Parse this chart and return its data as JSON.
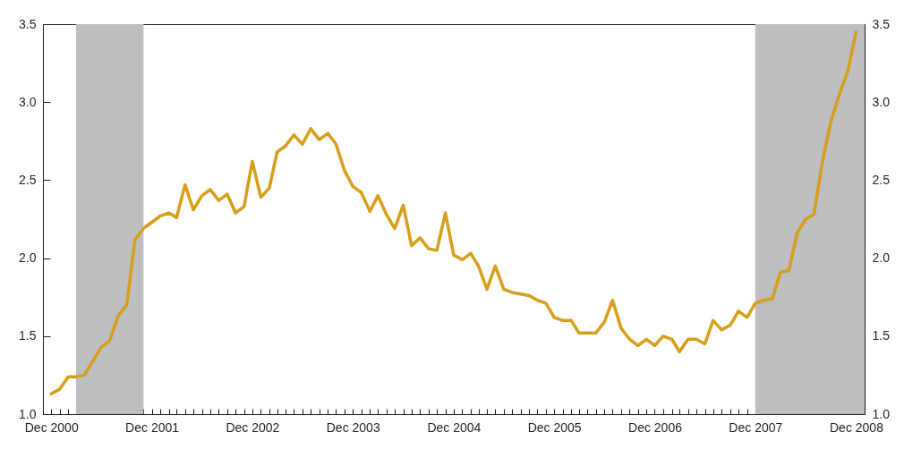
{
  "chart_data": {
    "type": "line",
    "x": [
      "2000-12",
      "2001-01",
      "2001-02",
      "2001-03",
      "2001-04",
      "2001-05",
      "2001-06",
      "2001-07",
      "2001-08",
      "2001-09",
      "2001-10",
      "2001-11",
      "2001-12",
      "2002-01",
      "2002-02",
      "2002-03",
      "2002-04",
      "2002-05",
      "2002-06",
      "2002-07",
      "2002-08",
      "2002-09",
      "2002-10",
      "2002-11",
      "2002-12",
      "2003-01",
      "2003-02",
      "2003-03",
      "2003-04",
      "2003-05",
      "2003-06",
      "2003-07",
      "2003-08",
      "2003-09",
      "2003-10",
      "2003-11",
      "2003-12",
      "2004-01",
      "2004-02",
      "2004-03",
      "2004-04",
      "2004-05",
      "2004-06",
      "2004-07",
      "2004-08",
      "2004-09",
      "2004-10",
      "2004-11",
      "2004-12",
      "2005-01",
      "2005-02",
      "2005-03",
      "2005-04",
      "2005-05",
      "2005-06",
      "2005-07",
      "2005-08",
      "2005-09",
      "2005-10",
      "2005-11",
      "2005-12",
      "2006-01",
      "2006-02",
      "2006-03",
      "2006-04",
      "2006-05",
      "2006-06",
      "2006-07",
      "2006-08",
      "2006-09",
      "2006-10",
      "2006-11",
      "2006-12",
      "2007-01",
      "2007-02",
      "2007-03",
      "2007-04",
      "2007-05",
      "2007-06",
      "2007-07",
      "2007-08",
      "2007-09",
      "2007-10",
      "2007-11",
      "2007-12",
      "2008-01",
      "2008-02",
      "2008-03",
      "2008-04",
      "2008-05",
      "2008-06",
      "2008-07",
      "2008-08",
      "2008-09",
      "2008-10",
      "2008-11",
      "2008-12"
    ],
    "series": [
      {
        "color": "#d69e1a",
        "values": [
          1.13,
          1.16,
          1.24,
          1.24,
          1.25,
          1.34,
          1.43,
          1.47,
          1.63,
          1.7,
          2.12,
          2.19,
          2.23,
          2.27,
          2.29,
          2.26,
          2.47,
          2.31,
          2.4,
          2.44,
          2.37,
          2.41,
          2.29,
          2.33,
          2.62,
          2.39,
          2.45,
          2.68,
          2.72,
          2.79,
          2.73,
          2.83,
          2.76,
          2.8,
          2.73,
          2.56,
          2.46,
          2.42,
          2.3,
          2.4,
          2.28,
          2.19,
          2.34,
          2.08,
          2.13,
          2.06,
          2.05,
          2.29,
          2.02,
          1.99,
          2.03,
          1.95,
          1.8,
          1.95,
          1.8,
          1.78,
          1.77,
          1.76,
          1.73,
          1.71,
          1.62,
          1.6,
          1.6,
          1.52,
          1.52,
          1.52,
          1.59,
          1.73,
          1.55,
          1.48,
          1.44,
          1.48,
          1.44,
          1.5,
          1.48,
          1.4,
          1.48,
          1.48,
          1.45,
          1.6,
          1.54,
          1.57,
          1.66,
          1.62,
          1.71,
          1.73,
          1.74,
          1.91,
          1.92,
          2.16,
          2.25,
          2.28,
          2.62,
          2.88,
          3.05,
          3.2,
          3.45
        ]
      }
    ],
    "xlim": [
      "2000-11",
      "2009-01"
    ],
    "xticks": [
      {
        "value": "2000-12",
        "label": "Dec 2000"
      },
      {
        "value": "2001-01",
        "label": null
      },
      {
        "value": "2001-02",
        "label": null
      },
      {
        "value": "2001-03",
        "label": null
      },
      {
        "value": "2001-04",
        "label": null
      },
      {
        "value": "2001-05",
        "label": null
      },
      {
        "value": "2001-06",
        "label": null
      },
      {
        "value": "2001-07",
        "label": null
      },
      {
        "value": "2001-08",
        "label": null
      },
      {
        "value": "2001-09",
        "label": null
      },
      {
        "value": "2001-10",
        "label": null
      },
      {
        "value": "2001-11",
        "label": null
      },
      {
        "value": "2001-12",
        "label": "Dec 2001"
      },
      {
        "value": "2002-01",
        "label": null
      },
      {
        "value": "2002-02",
        "label": null
      },
      {
        "value": "2002-03",
        "label": null
      },
      {
        "value": "2002-04",
        "label": null
      },
      {
        "value": "2002-05",
        "label": null
      },
      {
        "value": "2002-06",
        "label": null
      },
      {
        "value": "2002-07",
        "label": null
      },
      {
        "value": "2002-08",
        "label": null
      },
      {
        "value": "2002-09",
        "label": null
      },
      {
        "value": "2002-10",
        "label": null
      },
      {
        "value": "2002-11",
        "label": null
      },
      {
        "value": "2002-12",
        "label": "Dec 2002"
      },
      {
        "value": "2003-01",
        "label": null
      },
      {
        "value": "2003-02",
        "label": null
      },
      {
        "value": "2003-03",
        "label": null
      },
      {
        "value": "2003-04",
        "label": null
      },
      {
        "value": "2003-05",
        "label": null
      },
      {
        "value": "2003-06",
        "label": null
      },
      {
        "value": "2003-07",
        "label": null
      },
      {
        "value": "2003-08",
        "label": null
      },
      {
        "value": "2003-09",
        "label": null
      },
      {
        "value": "2003-10",
        "label": null
      },
      {
        "value": "2003-11",
        "label": null
      },
      {
        "value": "2003-12",
        "label": "Dec 2003"
      },
      {
        "value": "2004-01",
        "label": null
      },
      {
        "value": "2004-02",
        "label": null
      },
      {
        "value": "2004-03",
        "label": null
      },
      {
        "value": "2004-04",
        "label": null
      },
      {
        "value": "2004-05",
        "label": null
      },
      {
        "value": "2004-06",
        "label": null
      },
      {
        "value": "2004-07",
        "label": null
      },
      {
        "value": "2004-08",
        "label": null
      },
      {
        "value": "2004-09",
        "label": null
      },
      {
        "value": "2004-10",
        "label": null
      },
      {
        "value": "2004-11",
        "label": null
      },
      {
        "value": "2004-12",
        "label": "Dec 2004"
      },
      {
        "value": "2005-01",
        "label": null
      },
      {
        "value": "2005-02",
        "label": null
      },
      {
        "value": "2005-03",
        "label": null
      },
      {
        "value": "2005-04",
        "label": null
      },
      {
        "value": "2005-05",
        "label": null
      },
      {
        "value": "2005-06",
        "label": null
      },
      {
        "value": "2005-07",
        "label": null
      },
      {
        "value": "2005-08",
        "label": null
      },
      {
        "value": "2005-09",
        "label": null
      },
      {
        "value": "2005-10",
        "label": null
      },
      {
        "value": "2005-11",
        "label": null
      },
      {
        "value": "2005-12",
        "label": "Dec 2005"
      },
      {
        "value": "2006-01",
        "label": null
      },
      {
        "value": "2006-02",
        "label": null
      },
      {
        "value": "2006-03",
        "label": null
      },
      {
        "value": "2006-04",
        "label": null
      },
      {
        "value": "2006-05",
        "label": null
      },
      {
        "value": "2006-06",
        "label": null
      },
      {
        "value": "2006-07",
        "label": null
      },
      {
        "value": "2006-08",
        "label": null
      },
      {
        "value": "2006-09",
        "label": null
      },
      {
        "value": "2006-10",
        "label": null
      },
      {
        "value": "2006-11",
        "label": null
      },
      {
        "value": "2006-12",
        "label": "Dec 2006"
      },
      {
        "value": "2007-01",
        "label": null
      },
      {
        "value": "2007-02",
        "label": null
      },
      {
        "value": "2007-03",
        "label": null
      },
      {
        "value": "2007-04",
        "label": null
      },
      {
        "value": "2007-05",
        "label": null
      },
      {
        "value": "2007-06",
        "label": null
      },
      {
        "value": "2007-07",
        "label": null
      },
      {
        "value": "2007-08",
        "label": null
      },
      {
        "value": "2007-09",
        "label": null
      },
      {
        "value": "2007-10",
        "label": null
      },
      {
        "value": "2007-11",
        "label": null
      },
      {
        "value": "2007-12",
        "label": "Dec 2007"
      },
      {
        "value": "2008-01",
        "label": null
      },
      {
        "value": "2008-02",
        "label": null
      },
      {
        "value": "2008-03",
        "label": null
      },
      {
        "value": "2008-04",
        "label": null
      },
      {
        "value": "2008-05",
        "label": null
      },
      {
        "value": "2008-06",
        "label": null
      },
      {
        "value": "2008-07",
        "label": null
      },
      {
        "value": "2008-08",
        "label": null
      },
      {
        "value": "2008-09",
        "label": null
      },
      {
        "value": "2008-10",
        "label": null
      },
      {
        "value": "2008-11",
        "label": null
      },
      {
        "value": "2008-12",
        "label": "Dec 2008"
      }
    ],
    "ylim": [
      1,
      3.5
    ],
    "yticks": [
      {
        "value": 1,
        "label": "1.0"
      },
      {
        "value": 1.5,
        "label": "1.5"
      },
      {
        "value": 2,
        "label": "2.0"
      },
      {
        "value": 2.5,
        "label": "2.5"
      },
      {
        "value": 3,
        "label": "3.0"
      },
      {
        "value": 3.5,
        "label": "3.5"
      }
    ],
    "y2lim": [
      1,
      3.5
    ],
    "y2ticks": [
      {
        "value": 1,
        "label": "1.0"
      },
      {
        "value": 1.5,
        "label": "1.5"
      },
      {
        "value": 2,
        "label": "2.0"
      },
      {
        "value": 2.5,
        "label": "2.5"
      },
      {
        "value": 3,
        "label": "3.0"
      },
      {
        "value": 3.5,
        "label": "3.5"
      }
    ],
    "bands": [
      {
        "axis": "x",
        "from": "2001-03",
        "to": "2001-11",
        "color": "#bcbec0"
      },
      {
        "axis": "x",
        "from": "2007-12",
        "to": "2009-01",
        "color": "#bcbec0"
      }
    ],
    "grid": false
  }
}
